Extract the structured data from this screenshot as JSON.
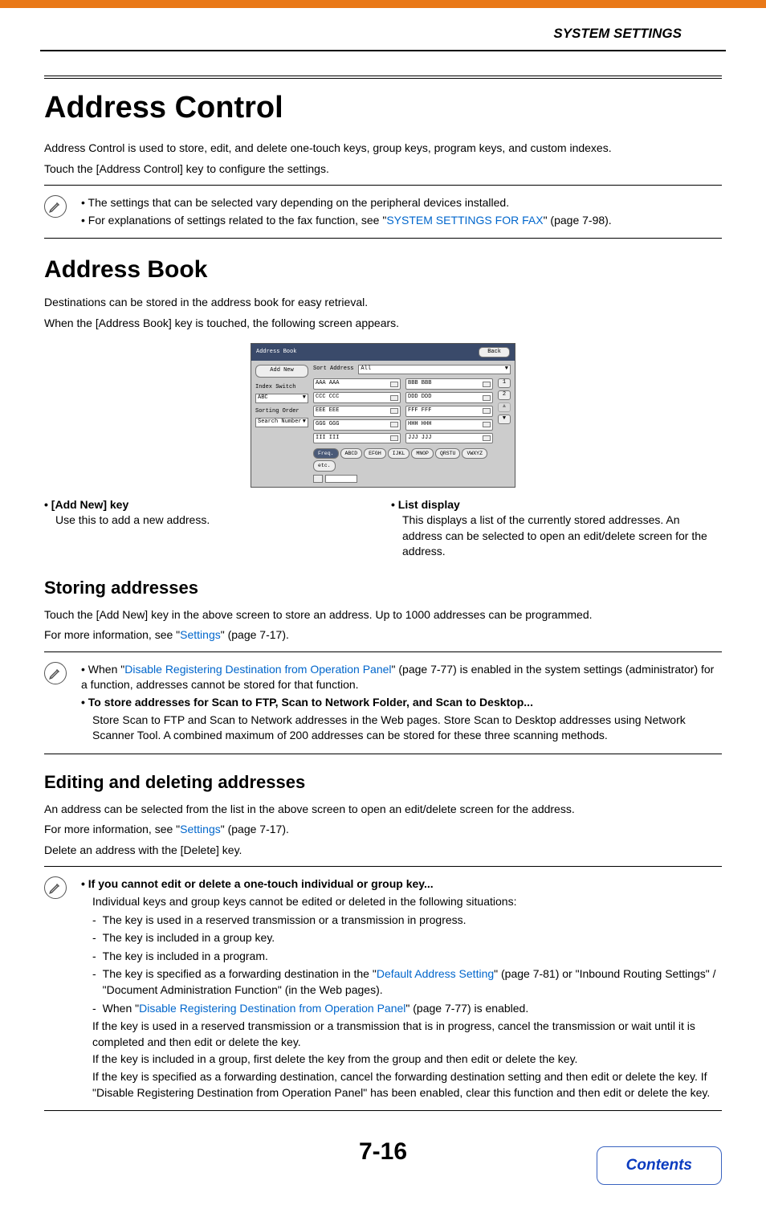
{
  "header": {
    "section_title": "SYSTEM SETTINGS"
  },
  "h1": "Address Control",
  "intro1": "Address Control is used to store, edit, and delete one-touch keys, group keys, program keys, and custom indexes.",
  "intro2": "Touch the [Address Control] key to configure the settings.",
  "note1": {
    "line1": "• The settings that can be selected vary depending on the peripheral devices installed.",
    "line2a": "• For explanations of settings related to the fax function, see \"",
    "line2_link": "SYSTEM SETTINGS FOR FAX",
    "line2b": "\" (page 7-98)."
  },
  "h2": "Address Book",
  "ab_p1": "Destinations can be stored in the address book for easy retrieval.",
  "ab_p2": "When the [Address Book] key is touched, the following screen appears.",
  "mock": {
    "title": "Address Book",
    "back": "Back",
    "add_new": "Add New",
    "index_switch": "Index Switch",
    "abc": "ABC",
    "sorting_order": "Sorting Order",
    "search_number": "Search Number",
    "sort_address": "Sort Address",
    "all": "All",
    "items_left": [
      "AAA AAA",
      "CCC CCC",
      "EEE EEE",
      "GGG GGG",
      "III III"
    ],
    "items_right": [
      "BBB BBB",
      "DDD DDD",
      "FFF FFF",
      "HHH HHH",
      "JJJ JJJ"
    ],
    "scroll": [
      "1",
      "2",
      "",
      ""
    ],
    "tabs": [
      "Freq.",
      "ABCD",
      "EFGH",
      "IJKL",
      "MNOP",
      "QRSTU",
      "VWXYZ",
      "etc."
    ]
  },
  "cols": {
    "left_h": "• [Add New] key",
    "left_b": "Use this to add a new address.",
    "right_h": "• List display",
    "right_b": "This displays a list of the currently stored addresses. An address can be selected to open an edit/delete screen for the address."
  },
  "storing_h": "Storing addresses",
  "storing_p1": "Touch the [Add New] key in the above screen to store an address. Up to 1000 addresses can be programmed.",
  "storing_p2a": "For more information, see \"",
  "storing_link": "Settings",
  "storing_p2b": "\" (page 7-17).",
  "note2": {
    "l1a": "• When \"",
    "l1link": "Disable Registering Destination from Operation Panel",
    "l1b": "\" (page 7-77) is enabled in the system settings (administrator) for a function, addresses cannot be stored for that function.",
    "l2h": "• To store addresses for Scan to FTP, Scan to Network Folder, and Scan to Desktop...",
    "l2b": "Store Scan to FTP and Scan to Network addresses in the Web pages. Store Scan to Desktop addresses using Network Scanner Tool. A combined maximum of 200 addresses can be stored for these three scanning methods."
  },
  "edit_h": "Editing and deleting addresses",
  "edit_p1": "An address can be selected from the list in the above screen to open an edit/delete screen for the address.",
  "edit_p2a": "For more information, see \"",
  "edit_link": "Settings",
  "edit_p2b": "\" (page 7-17).",
  "edit_p3": "Delete an address with the [Delete] key.",
  "note3": {
    "h": "• If you cannot edit or delete a one-touch individual or group key...",
    "intro": "Individual keys and group keys cannot be edited or deleted in the following situations:",
    "d1": "The key is used in a reserved transmission or a transmission in progress.",
    "d2": "The key is included in a group key.",
    "d3": "The key is included in a program.",
    "d4a": "The key is specified as a forwarding destination in the \"",
    "d4link": "Default Address Setting",
    "d4b": "\" (page 7-81) or \"Inbound Routing Settings\" / \"Document Administration Function\" (in the Web pages).",
    "d5a": "When \"",
    "d5link": "Disable Registering Destination from Operation Panel",
    "d5b": "\" (page 7-77) is enabled.",
    "p1": "If the key is used in a reserved transmission or a transmission that is in progress, cancel the transmission or wait until it is completed and then edit or delete the key.",
    "p2": "If the key is included in a group, first delete the key from the group and then edit or delete the key.",
    "p3": "If the key is specified as a forwarding destination, cancel the forwarding destination setting and then edit or delete the key. If \"Disable Registering Destination from Operation Panel\" has been enabled, clear this function and then edit or delete the key."
  },
  "page_num": "7-16",
  "contents_label": "Contents"
}
